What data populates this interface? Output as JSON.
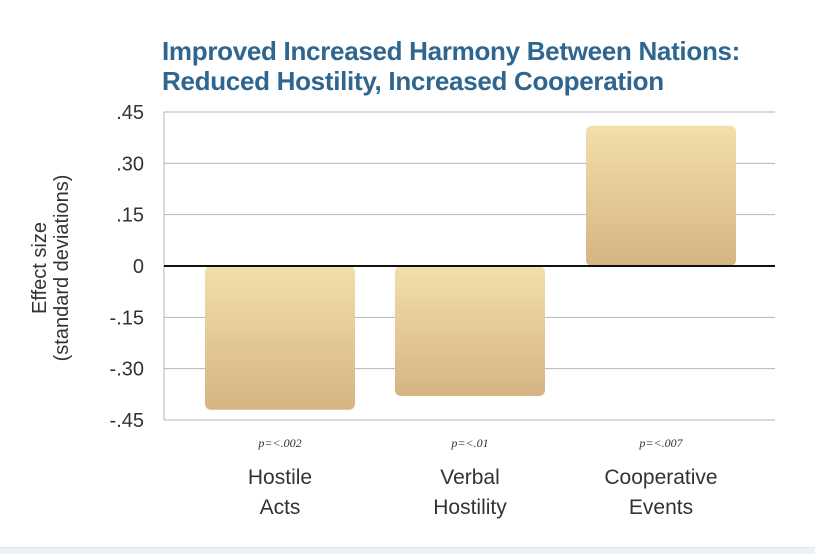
{
  "title_lines": [
    "Improved Increased Harmony Between Nations:",
    "Reduced Hostility, Increased Cooperation"
  ],
  "colors": {
    "title": "#2f6690",
    "bar_top": "#f2dfaa",
    "bar_bottom": "#d6b483",
    "grid": "#b5b5b5",
    "zero_line": "#111111",
    "text": "#333333"
  },
  "chart_data": {
    "type": "bar",
    "title": "Improved Increased Harmony Between Nations: Reduced Hostility, Increased Cooperation",
    "ylabel": [
      "Effect size",
      "(standard deviations)"
    ],
    "xlabel": "",
    "ylim": [
      -0.45,
      0.45
    ],
    "yticks": [
      0.45,
      0.3,
      0.15,
      0,
      -0.15,
      -0.3,
      -0.45
    ],
    "ytick_labels": [
      ".45",
      ".30",
      ".15",
      "0",
      "-.15",
      "-.30",
      "-.45"
    ],
    "grid": true,
    "categories": [
      {
        "lines": [
          "Hostile",
          "Acts"
        ],
        "p_value": "p=<.002"
      },
      {
        "lines": [
          "Verbal",
          "Hostility"
        ],
        "p_value": "p=<.01"
      },
      {
        "lines": [
          "Cooperative",
          "Events"
        ],
        "p_value": "p=<.007"
      }
    ],
    "values": [
      -0.42,
      -0.38,
      0.41
    ]
  }
}
